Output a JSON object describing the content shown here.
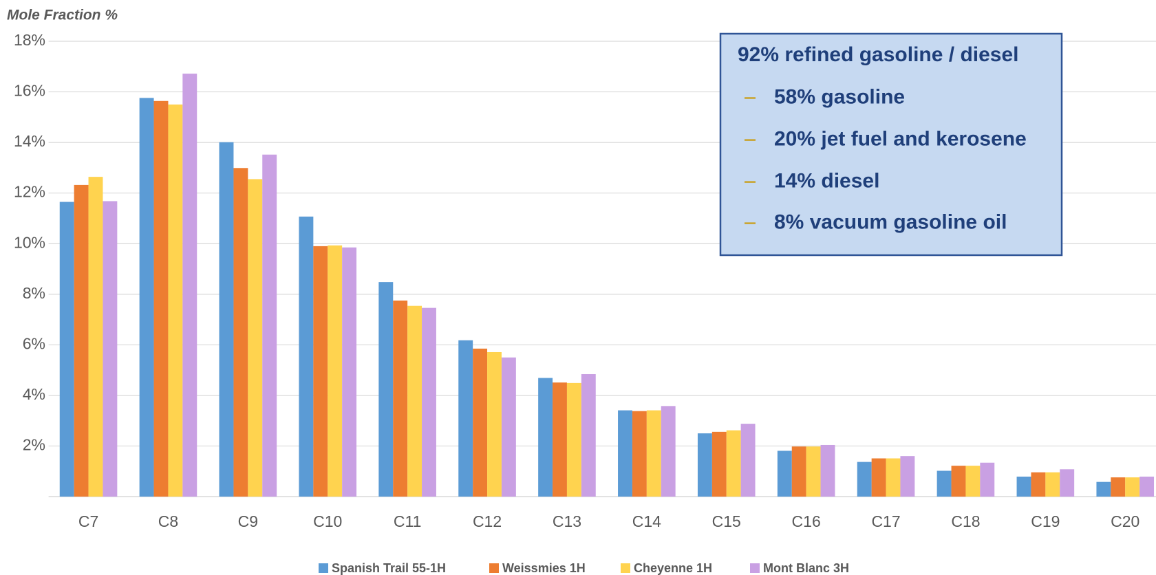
{
  "chart_data": {
    "type": "bar",
    "y_axis_label": "Mole Fraction %",
    "categories": [
      "C7",
      "C8",
      "C9",
      "C10",
      "C11",
      "C12",
      "C13",
      "C14",
      "C15",
      "C16",
      "C17",
      "C18",
      "C19",
      "C20"
    ],
    "series": [
      {
        "name": "Spanish Trail 55-1H",
        "color": "#5b9bd5",
        "values": [
          11.65,
          15.76,
          14.01,
          11.07,
          8.48,
          6.18,
          4.69,
          3.41,
          2.5,
          1.81,
          1.37,
          1.02,
          0.79,
          0.58
        ]
      },
      {
        "name": "Weissmies 1H",
        "color": "#ed7d31",
        "values": [
          12.32,
          15.64,
          12.99,
          9.9,
          7.75,
          5.85,
          4.51,
          3.38,
          2.56,
          1.98,
          1.51,
          1.22,
          0.96,
          0.76
        ]
      },
      {
        "name": "Cheyenne 1H",
        "color": "#ffd34f",
        "values": [
          12.64,
          15.5,
          12.55,
          9.93,
          7.54,
          5.71,
          4.49,
          3.41,
          2.62,
          1.98,
          1.51,
          1.22,
          0.96,
          0.76
        ]
      },
      {
        "name": "Mont Blanc 3H",
        "color": "#c9a0e3",
        "values": [
          11.68,
          16.72,
          13.52,
          9.85,
          7.46,
          5.5,
          4.84,
          3.58,
          2.88,
          2.04,
          1.6,
          1.34,
          1.08,
          0.79
        ]
      }
    ],
    "ylim": [
      0,
      18
    ],
    "yticks": [
      {
        "value": 2,
        "label": "2%"
      },
      {
        "value": 4,
        "label": "4%"
      },
      {
        "value": 6,
        "label": "6%"
      },
      {
        "value": 8,
        "label": "8%"
      },
      {
        "value": 10,
        "label": "10%"
      },
      {
        "value": 12,
        "label": "12%"
      },
      {
        "value": 14,
        "label": "14%"
      },
      {
        "value": 16,
        "label": "16%"
      },
      {
        "value": 18,
        "label": "18%"
      }
    ],
    "grid": true,
    "annotation": {
      "title": "92% refined gasoline / diesel",
      "items": [
        "58% gasoline",
        "20% jet fuel and kerosene",
        "14% diesel",
        "8% vacuum gasoline oil"
      ]
    }
  }
}
